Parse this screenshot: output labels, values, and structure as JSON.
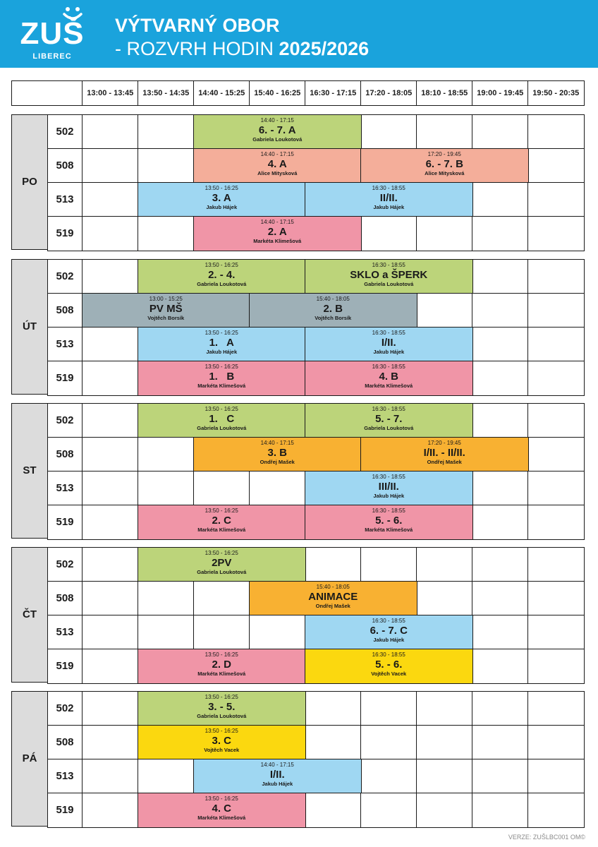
{
  "header": {
    "logo_text": "ZUŠ",
    "logo_city": "LIBEREC",
    "title_line1": "VÝTVARNÝ OBOR",
    "title_line2": "- ROZVRH HODIN",
    "title_year": "2025/2026"
  },
  "colors": {
    "header_bg": "#1aa3dc",
    "green": "#bcd47a",
    "salmon": "#f4ae9a",
    "blue": "#9fd7f2",
    "pink": "#f095a7",
    "gray": "#9eb0b7",
    "orange": "#f8b132",
    "yellow": "#fbd80f",
    "day_bg": "#dcdcdc"
  },
  "time_slots": [
    "13:00 - 13:45",
    "13:50 - 14:35",
    "14:40 - 15:25",
    "15:40 - 16:25",
    "16:30 - 17:15",
    "17:20 - 18:05",
    "18:10 - 18:55",
    "19:00 - 19:45",
    "19:50 - 20:35"
  ],
  "days": [
    {
      "name": "PO",
      "rooms": [
        {
          "room": "502",
          "lessons": [
            {
              "start": 2,
              "span": 3,
              "time": "14:40 - 17:15",
              "class": "6. - 7. A",
              "teacher": "Gabriela Loukotová",
              "color": "green"
            }
          ]
        },
        {
          "room": "508",
          "lessons": [
            {
              "start": 2,
              "span": 3,
              "time": "14:40 - 17:15",
              "class": "4. A",
              "teacher": "Alice Mitysková",
              "color": "salmon"
            },
            {
              "start": 5,
              "span": 3,
              "time": "17:20 - 19:45",
              "class": "6. - 7. B",
              "teacher": "Alice Mitysková",
              "color": "salmon"
            }
          ]
        },
        {
          "room": "513",
          "lessons": [
            {
              "start": 1,
              "span": 3,
              "time": "13:50 - 16:25",
              "class": "3. A",
              "teacher": "Jakub Hájek",
              "color": "blue"
            },
            {
              "start": 4,
              "span": 3,
              "time": "16:30 - 18:55",
              "class": "II/II.",
              "teacher": "Jakub Hájek",
              "color": "blue"
            }
          ]
        },
        {
          "room": "519",
          "lessons": [
            {
              "start": 2,
              "span": 3,
              "time": "14:40 - 17:15",
              "class": "2. A",
              "teacher": "Markéta Klimešová",
              "color": "pink"
            }
          ]
        }
      ]
    },
    {
      "name": "ÚT",
      "rooms": [
        {
          "room": "502",
          "lessons": [
            {
              "start": 1,
              "span": 3,
              "time": "13:50 - 16:25",
              "class": "2. - 4.",
              "teacher": "Gabriela Loukotová",
              "color": "green"
            },
            {
              "start": 4,
              "span": 3,
              "time": "16:30 - 18:55",
              "class": "SKLO a ŠPERK",
              "teacher": "Gabriela Loukotová",
              "color": "green"
            }
          ]
        },
        {
          "room": "508",
          "lessons": [
            {
              "start": 0,
              "span": 3,
              "time": "13:00 - 15:25",
              "class": "PV MŠ",
              "teacher": "Vojtěch Borsík",
              "color": "gray"
            },
            {
              "start": 3,
              "span": 3,
              "time": "15:40 - 18:05",
              "class": "2. B",
              "teacher": "Vojtěch Borsík",
              "color": "gray"
            }
          ]
        },
        {
          "room": "513",
          "lessons": [
            {
              "start": 1,
              "span": 3,
              "time": "13:50 - 16:25",
              "class": "1.   A",
              "teacher": "Jakub Hájek",
              "color": "blue"
            },
            {
              "start": 4,
              "span": 3,
              "time": "16:30 - 18:55",
              "class": "I/II.",
              "teacher": "Jakub Hájek",
              "color": "blue"
            }
          ]
        },
        {
          "room": "519",
          "lessons": [
            {
              "start": 1,
              "span": 3,
              "time": "13:50 - 16:25",
              "class": "1.   B",
              "teacher": "Markéta Klimešová",
              "color": "pink"
            },
            {
              "start": 4,
              "span": 3,
              "time": "16:30 - 18:55",
              "class": "4. B",
              "teacher": "Markéta Klimešová",
              "color": "pink"
            }
          ]
        }
      ]
    },
    {
      "name": "ST",
      "rooms": [
        {
          "room": "502",
          "lessons": [
            {
              "start": 1,
              "span": 3,
              "time": "13:50 - 16:25",
              "class": "1.   C",
              "teacher": "Gabriela Loukotová",
              "color": "green"
            },
            {
              "start": 4,
              "span": 3,
              "time": "16:30 - 18:55",
              "class": "5. - 7.",
              "teacher": "Gabriela Loukotová",
              "color": "green"
            }
          ]
        },
        {
          "room": "508",
          "lessons": [
            {
              "start": 2,
              "span": 3,
              "time": "14:40 - 17:15",
              "class": "3. B",
              "teacher": "Ondřej Mašek",
              "color": "orange"
            },
            {
              "start": 5,
              "span": 3,
              "time": "17:20 - 19:45",
              "class": "I/II. - II/II.",
              "teacher": "Ondřej Mašek",
              "color": "orange"
            }
          ]
        },
        {
          "room": "513",
          "lessons": [
            {
              "start": 4,
              "span": 3,
              "time": "16:30 - 18:55",
              "class": "III/II.",
              "teacher": "Jakub Hájek",
              "color": "blue"
            }
          ]
        },
        {
          "room": "519",
          "lessons": [
            {
              "start": 1,
              "span": 3,
              "time": "13:50 - 16:25",
              "class": "2. C",
              "teacher": "Markéta Klimešová",
              "color": "pink"
            },
            {
              "start": 4,
              "span": 3,
              "time": "16:30 - 18:55",
              "class": "5. - 6.",
              "teacher": "Markéta Klimešová",
              "color": "pink"
            }
          ]
        }
      ]
    },
    {
      "name": "ČT",
      "rooms": [
        {
          "room": "502",
          "lessons": [
            {
              "start": 1,
              "span": 3,
              "time": "13:50 - 16:25",
              "class": "2PV",
              "teacher": "Gabriela Loukotová",
              "color": "green"
            }
          ]
        },
        {
          "room": "508",
          "lessons": [
            {
              "start": 3,
              "span": 3,
              "time": "15:40 - 18:05",
              "class": "ANIMACE",
              "teacher": "Ondřej Mašek",
              "color": "orange"
            }
          ]
        },
        {
          "room": "513",
          "lessons": [
            {
              "start": 4,
              "span": 3,
              "time": "16:30 - 18:55",
              "class": "6. - 7. C",
              "teacher": "Jakub Hájek",
              "color": "blue"
            }
          ]
        },
        {
          "room": "519",
          "lessons": [
            {
              "start": 1,
              "span": 3,
              "time": "13:50 - 16:25",
              "class": "2. D",
              "teacher": "Markéta Klimešová",
              "color": "pink"
            },
            {
              "start": 4,
              "span": 3,
              "time": "16:30 - 18:55",
              "class": "5. - 6.",
              "teacher": "Vojtěch Vacek",
              "color": "yellow"
            }
          ]
        }
      ]
    },
    {
      "name": "PÁ",
      "rooms": [
        {
          "room": "502",
          "lessons": [
            {
              "start": 1,
              "span": 3,
              "time": "13:50 - 16:25",
              "class": "3. - 5.",
              "teacher": "Gabriela Loukotová",
              "color": "green"
            }
          ]
        },
        {
          "room": "508",
          "lessons": [
            {
              "start": 1,
              "span": 3,
              "time": "13:50 - 16:25",
              "class": "3. C",
              "teacher": "Vojtěch Vacek",
              "color": "yellow"
            }
          ]
        },
        {
          "room": "513",
          "lessons": [
            {
              "start": 2,
              "span": 3,
              "time": "14:40 - 17:15",
              "class": "I/II.",
              "teacher": "Jakub Hájek",
              "color": "blue"
            }
          ]
        },
        {
          "room": "519",
          "lessons": [
            {
              "start": 1,
              "span": 3,
              "time": "13:50 - 16:25",
              "class": "4. C",
              "teacher": "Markéta Klimešová",
              "color": "pink"
            }
          ]
        }
      ]
    }
  ],
  "version": "VERZE: ZUŠLBC001 OM©"
}
